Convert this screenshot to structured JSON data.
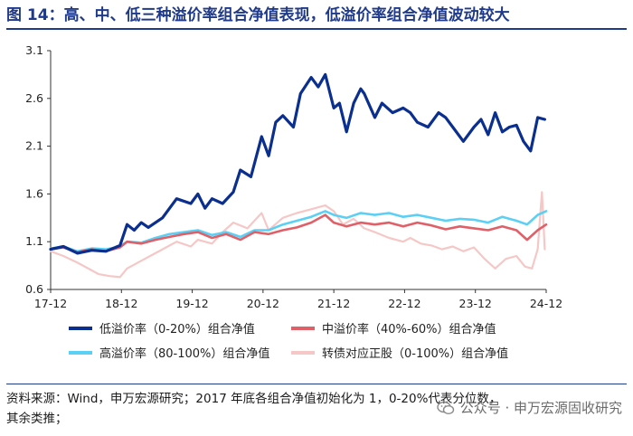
{
  "title": "图 14：高、中、低三种溢价率组合净值表现，低溢价率组合净值波动较大",
  "source_line1": "资料来源：Wind，申万宏源研究；2017 年底各组合净值初始化为 1，0-20%代表分位数，",
  "source_line2": "其余类推；",
  "watermark": "公众号 · 申万宏源固收研究",
  "watermark_icon": "wechat-icon",
  "colors": {
    "low": "#0b2f8f",
    "mid": "#e06068",
    "high": "#5bd0f5",
    "cb": "#f6c7c7",
    "axis": "#333333",
    "title": "#1f3a8a"
  },
  "chart_data": {
    "type": "line",
    "xlabel": "",
    "ylabel": "",
    "grid": false,
    "x_ticks": [
      "17-12",
      "18-12",
      "19-12",
      "20-12",
      "21-12",
      "22-12",
      "23-12",
      "24-12"
    ],
    "x_range": [
      2017.92,
      2024.92
    ],
    "ylim": [
      0.6,
      3.1
    ],
    "y_ticks": [
      0.6,
      1.1,
      1.6,
      2.1,
      2.6,
      3.1
    ],
    "y_tick_labels": [
      "0.6",
      "1.1",
      "1.6",
      "2.1",
      "2.6",
      "3.1"
    ],
    "legend_position": "bottom",
    "series": [
      {
        "name": "低溢价率（0-20%）组合净值",
        "color": "#0b2f8f",
        "width": 3.2,
        "x": [
          2017.92,
          2018.1,
          2018.3,
          2018.5,
          2018.7,
          2018.9,
          2019.0,
          2019.1,
          2019.2,
          2019.3,
          2019.5,
          2019.7,
          2019.9,
          2020.0,
          2020.1,
          2020.2,
          2020.35,
          2020.5,
          2020.6,
          2020.75,
          2020.9,
          2021.0,
          2021.1,
          2021.2,
          2021.35,
          2021.45,
          2021.6,
          2021.7,
          2021.8,
          2021.92,
          2022.0,
          2022.1,
          2022.2,
          2022.3,
          2022.35,
          2022.5,
          2022.6,
          2022.75,
          2022.9,
          2023.0,
          2023.1,
          2023.25,
          2023.4,
          2023.5,
          2023.6,
          2023.75,
          2023.9,
          2024.0,
          2024.1,
          2024.2,
          2024.3,
          2024.4,
          2024.5,
          2024.6,
          2024.7,
          2024.8,
          2024.9
        ],
        "values": [
          1.02,
          1.05,
          0.98,
          1.01,
          1.0,
          1.06,
          1.28,
          1.22,
          1.3,
          1.25,
          1.35,
          1.55,
          1.5,
          1.6,
          1.45,
          1.55,
          1.5,
          1.62,
          1.85,
          1.78,
          2.2,
          2.0,
          2.35,
          2.42,
          2.3,
          2.65,
          2.82,
          2.72,
          2.85,
          2.5,
          2.55,
          2.25,
          2.55,
          2.7,
          2.65,
          2.4,
          2.55,
          2.45,
          2.5,
          2.45,
          2.35,
          2.3,
          2.45,
          2.4,
          2.3,
          2.15,
          2.3,
          2.38,
          2.22,
          2.45,
          2.25,
          2.3,
          2.32,
          2.15,
          2.05,
          2.4,
          2.38
        ]
      },
      {
        "name": "中溢价率（40%-60%）组合净值",
        "color": "#e06068",
        "width": 2.6,
        "x": [
          2017.92,
          2018.1,
          2018.3,
          2018.5,
          2018.7,
          2018.9,
          2019.0,
          2019.2,
          2019.4,
          2019.6,
          2019.8,
          2020.0,
          2020.2,
          2020.4,
          2020.6,
          2020.8,
          2021.0,
          2021.2,
          2021.4,
          2021.6,
          2021.8,
          2021.92,
          2022.1,
          2022.3,
          2022.5,
          2022.7,
          2022.9,
          2023.1,
          2023.3,
          2023.5,
          2023.7,
          2023.9,
          2024.1,
          2024.3,
          2024.5,
          2024.65,
          2024.8,
          2024.92
        ],
        "values": [
          1.02,
          1.04,
          0.99,
          1.02,
          1.0,
          1.04,
          1.1,
          1.08,
          1.12,
          1.15,
          1.18,
          1.2,
          1.14,
          1.18,
          1.12,
          1.2,
          1.18,
          1.22,
          1.25,
          1.3,
          1.38,
          1.3,
          1.26,
          1.3,
          1.28,
          1.3,
          1.26,
          1.3,
          1.27,
          1.23,
          1.26,
          1.24,
          1.22,
          1.26,
          1.22,
          1.12,
          1.22,
          1.28
        ]
      },
      {
        "name": "高溢价率（80-100%）组合净值",
        "color": "#5bd0f5",
        "width": 2.6,
        "x": [
          2017.92,
          2018.1,
          2018.3,
          2018.5,
          2018.7,
          2018.9,
          2019.0,
          2019.2,
          2019.4,
          2019.6,
          2019.8,
          2020.0,
          2020.2,
          2020.4,
          2020.6,
          2020.8,
          2021.0,
          2021.2,
          2021.4,
          2021.6,
          2021.8,
          2021.92,
          2022.1,
          2022.3,
          2022.5,
          2022.7,
          2022.9,
          2023.1,
          2023.3,
          2023.5,
          2023.7,
          2023.9,
          2024.1,
          2024.3,
          2024.5,
          2024.65,
          2024.8,
          2024.92
        ],
        "values": [
          1.03,
          1.05,
          1.0,
          1.03,
          1.02,
          1.05,
          1.1,
          1.09,
          1.14,
          1.18,
          1.2,
          1.22,
          1.17,
          1.2,
          1.15,
          1.22,
          1.22,
          1.28,
          1.32,
          1.36,
          1.42,
          1.38,
          1.35,
          1.4,
          1.38,
          1.4,
          1.36,
          1.38,
          1.35,
          1.32,
          1.34,
          1.33,
          1.3,
          1.36,
          1.32,
          1.28,
          1.38,
          1.42
        ]
      },
      {
        "name": "转债对应正股（0-100%）组合净值",
        "color": "#f6c7c7",
        "width": 2.2,
        "x": [
          2017.92,
          2018.1,
          2018.3,
          2018.5,
          2018.6,
          2018.75,
          2018.9,
          2019.0,
          2019.2,
          2019.35,
          2019.5,
          2019.7,
          2019.9,
          2020.0,
          2020.2,
          2020.35,
          2020.5,
          2020.7,
          2020.9,
          2021.0,
          2021.2,
          2021.4,
          2021.6,
          2021.8,
          2021.92,
          2022.05,
          2022.2,
          2022.35,
          2022.5,
          2022.7,
          2022.9,
          2023.0,
          2023.15,
          2023.3,
          2023.45,
          2023.6,
          2023.75,
          2023.9,
          2024.05,
          2024.2,
          2024.35,
          2024.5,
          2024.62,
          2024.72,
          2024.8,
          2024.86,
          2024.9
        ],
        "values": [
          1.0,
          0.95,
          0.88,
          0.8,
          0.76,
          0.74,
          0.73,
          0.82,
          0.9,
          0.96,
          1.02,
          1.1,
          1.05,
          1.12,
          1.08,
          1.2,
          1.3,
          1.24,
          1.4,
          1.22,
          1.35,
          1.4,
          1.44,
          1.48,
          1.42,
          1.28,
          1.34,
          1.24,
          1.2,
          1.14,
          1.1,
          1.14,
          1.08,
          1.06,
          1.02,
          1.05,
          1.0,
          1.04,
          0.92,
          0.82,
          0.92,
          0.95,
          0.84,
          0.82,
          1.02,
          1.62,
          1.02
        ]
      }
    ]
  }
}
